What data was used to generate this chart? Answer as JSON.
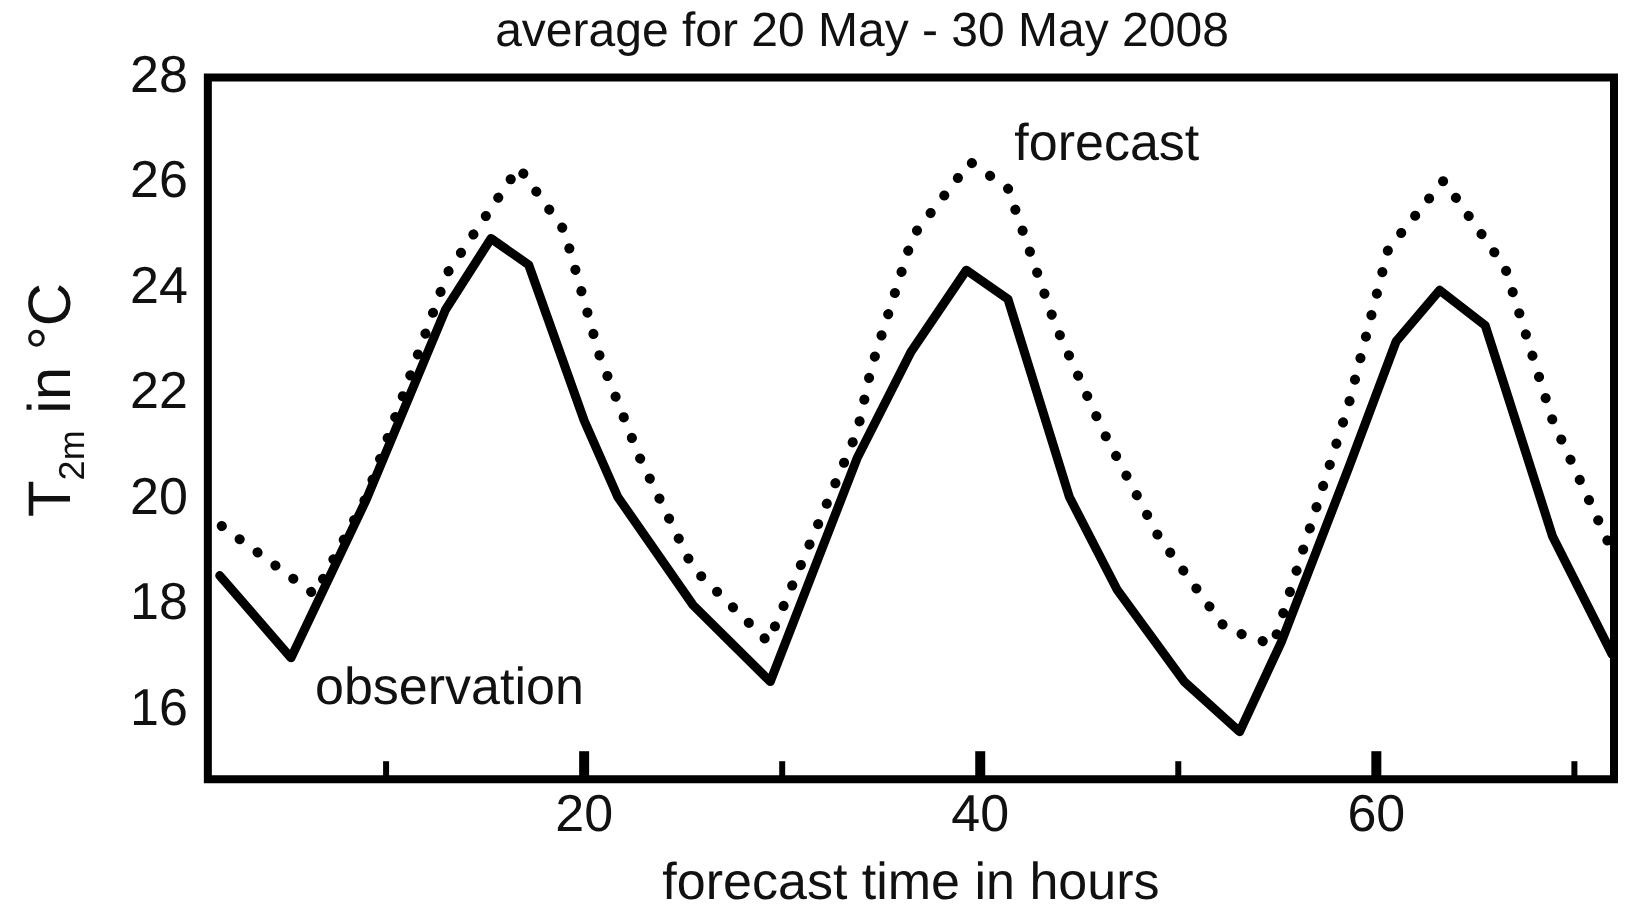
{
  "chart_data": {
    "type": "line",
    "title": "average for 20 May - 30 May 2008",
    "xlabel": "forecast time in hours",
    "ylabel": "T$_{2m}$ in °C",
    "xlim": [
      1,
      72
    ],
    "xticks": [
      {
        "value": 10,
        "label": null
      },
      20,
      {
        "value": 30,
        "label": null
      },
      40,
      {
        "value": 50,
        "label": null
      },
      60,
      {
        "value": 70,
        "label": null
      }
    ],
    "ylim": [
      14.7,
      28
    ],
    "yticks": [
      16,
      18,
      20,
      22,
      24,
      26,
      28
    ],
    "marker": "none",
    "series": [
      {
        "name": "observation",
        "color": "#000000",
        "line_style": "solid",
        "x": [
          1.6,
          5.2,
          9,
          13,
          15.3,
          17.2,
          20,
          21.7,
          25.5,
          29.4,
          33.8,
          36.5,
          39.3,
          41.4,
          44.5,
          46.9,
          50.3,
          53.1,
          55.2,
          58.6,
          61,
          63.2,
          65.5,
          68.9,
          71.9
        ],
        "values": [
          18.56,
          17.0,
          20.0,
          23.6,
          24.95,
          24.45,
          21.5,
          20.05,
          18.0,
          16.55,
          20.8,
          22.8,
          24.35,
          23.8,
          20.05,
          18.3,
          16.55,
          15.6,
          17.3,
          20.6,
          23.0,
          23.97,
          23.3,
          19.3,
          17.07
        ]
      },
      {
        "name": "forecast",
        "color": "#000000",
        "line_style": "dotted",
        "x": [
          1.7,
          6.4,
          9,
          13.1,
          16.7,
          19,
          20.8,
          22.8,
          25.5,
          29.3,
          33.8,
          34.5,
          36.6,
          39.5,
          41.4,
          43.8,
          46.2,
          49,
          52.4,
          54.8,
          58.6,
          60.6,
          63.4,
          66.5,
          68.9,
          71.7
        ],
        "values": [
          19.5,
          18.2,
          20.05,
          24.3,
          26.3,
          25.1,
          22.7,
          20.8,
          18.7,
          17.3,
          21.3,
          22.5,
          25.0,
          26.4,
          25.9,
          23.3,
          21.3,
          19.3,
          17.55,
          17.25,
          21.8,
          24.75,
          26.05,
          24.4,
          21.5,
          19.2
        ]
      }
    ]
  }
}
